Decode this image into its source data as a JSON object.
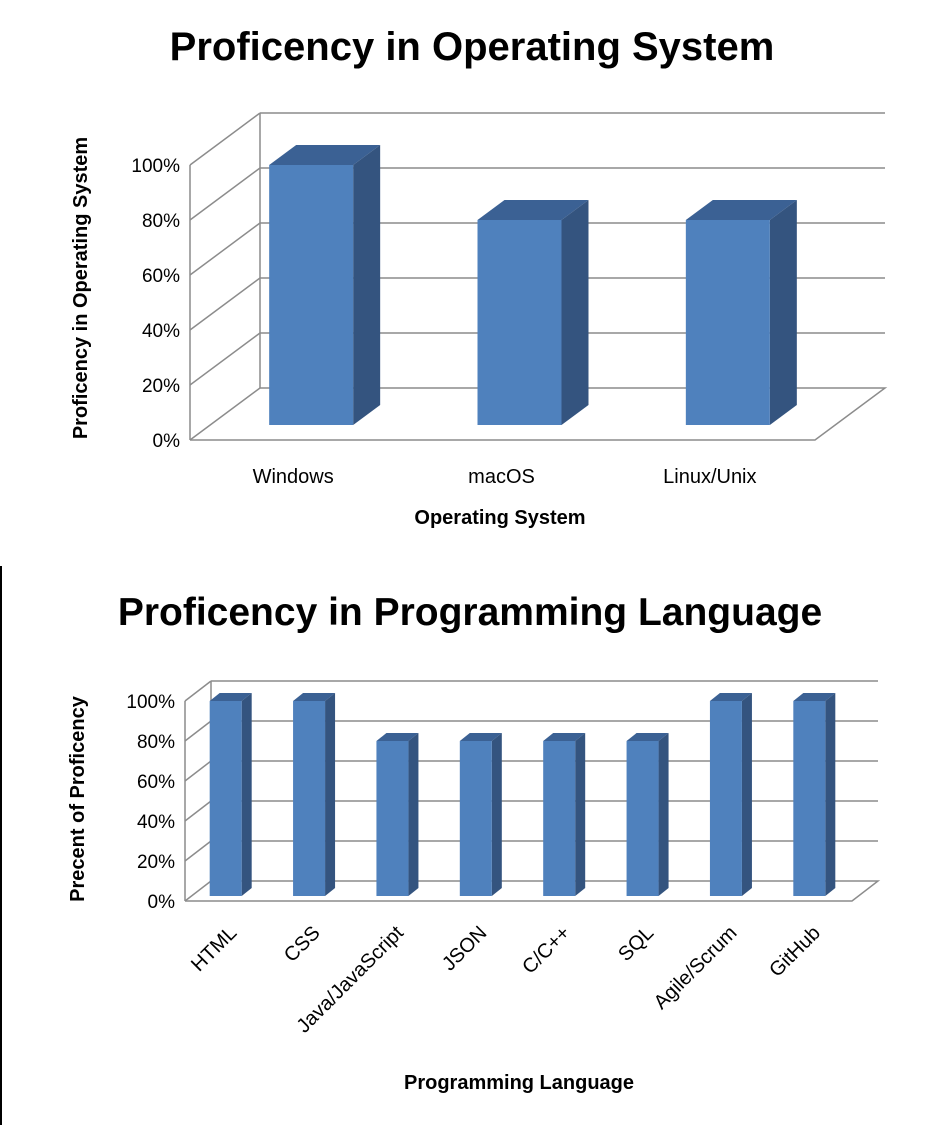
{
  "colors": {
    "bar_front": "#4f81bd",
    "bar_side": "#34547f",
    "bar_top": "#3b6194",
    "grid": "#8c8c8c"
  },
  "chart_data": [
    {
      "type": "bar",
      "title": "Proficency in Operating System",
      "xlabel": "Operating System",
      "ylabel": "Proficency in Operating System",
      "categories": [
        "Windows",
        "macOS",
        "Linux/Unix"
      ],
      "values": [
        100,
        80,
        80
      ],
      "ylim": [
        0,
        100
      ],
      "y_ticks": [
        "0%",
        "20%",
        "40%",
        "60%",
        "80%",
        "100%"
      ],
      "grid": true,
      "legend": "none"
    },
    {
      "type": "bar",
      "title": "Proficency in Programming Language",
      "xlabel": "Programming Language",
      "ylabel": "Precent of Proficency",
      "categories": [
        "HTML",
        "CSS",
        "Java/JavaScript",
        "JSON",
        "C/C++",
        "SQL",
        "Agile/Scrum",
        "GitHub"
      ],
      "values": [
        100,
        100,
        80,
        80,
        80,
        80,
        100,
        100
      ],
      "ylim": [
        0,
        100
      ],
      "y_ticks": [
        "0%",
        "20%",
        "40%",
        "60%",
        "80%",
        "100%"
      ],
      "grid": true,
      "legend": "none"
    }
  ]
}
